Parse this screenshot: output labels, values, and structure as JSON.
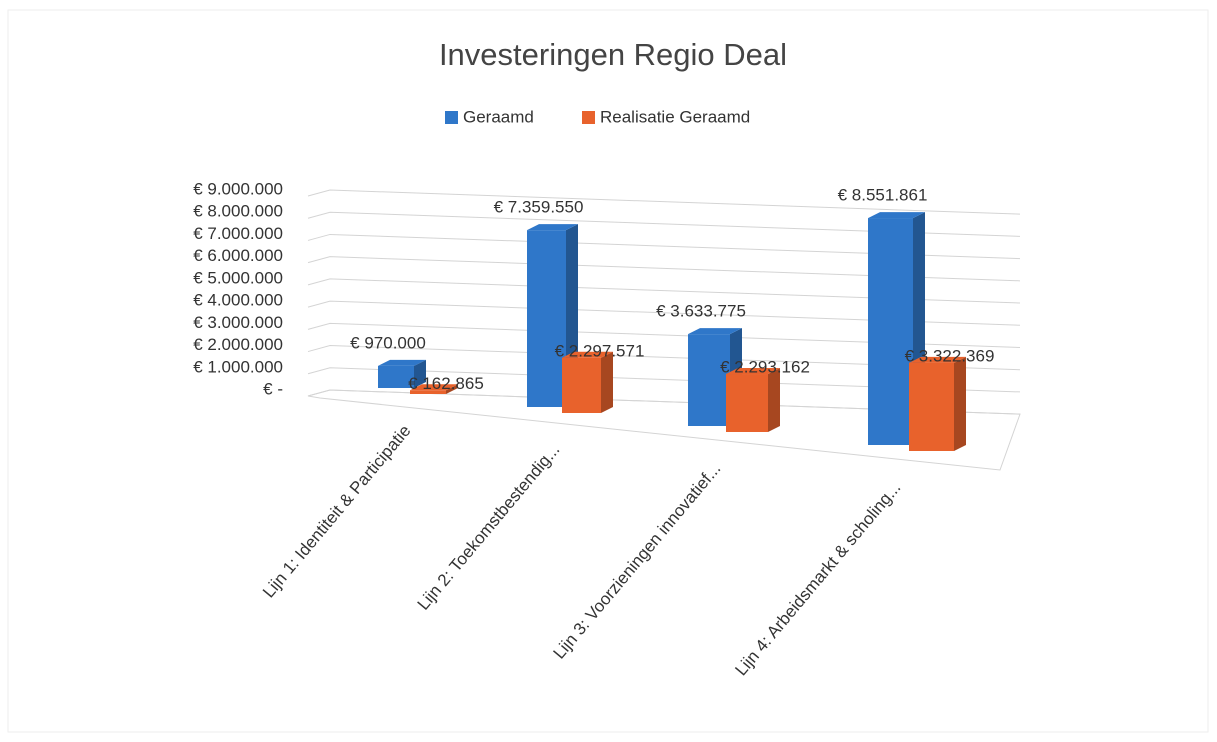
{
  "chart_data": {
    "type": "bar3d",
    "title": "Investeringen Regio Deal",
    "categories": [
      "Lijn 1: Identiteit & Participatie",
      "Lijn 2: Toekomstbestendig...",
      "Lijn 3: Voorzieningen innovatief...",
      "Lijn 4: Arbeidsmarkt & scholing..."
    ],
    "series": [
      {
        "name": "Geraamd",
        "color": "#2f77c9",
        "values": [
          970000,
          7359550,
          3633775,
          8551861
        ],
        "value_labels": [
          "€ 970.000",
          "€ 7.359.550",
          "€ 3.633.775",
          "€ 8.551.861"
        ]
      },
      {
        "name": "Realisatie Geraamd",
        "color": "#e8622c",
        "values": [
          162865,
          2297571,
          2293162,
          3322369
        ],
        "value_labels": [
          "€ 162.865",
          "€ 2.297.571",
          "€ 2.293.162",
          "€ 3.322.369"
        ]
      }
    ],
    "ylim": [
      0,
      9000000
    ],
    "yticks": [
      {
        "value": 0,
        "label": "€ -"
      },
      {
        "value": 1000000,
        "label": "€ 1.000.000"
      },
      {
        "value": 2000000,
        "label": "€ 2.000.000"
      },
      {
        "value": 3000000,
        "label": "€ 3.000.000"
      },
      {
        "value": 4000000,
        "label": "€ 4.000.000"
      },
      {
        "value": 5000000,
        "label": "€ 5.000.000"
      },
      {
        "value": 6000000,
        "label": "€ 6.000.000"
      },
      {
        "value": 7000000,
        "label": "€ 7.000.000"
      },
      {
        "value": 8000000,
        "label": "€ 8.000.000"
      },
      {
        "value": 9000000,
        "label": "€ 9.000.000"
      }
    ],
    "grid": true,
    "legend": "top"
  }
}
